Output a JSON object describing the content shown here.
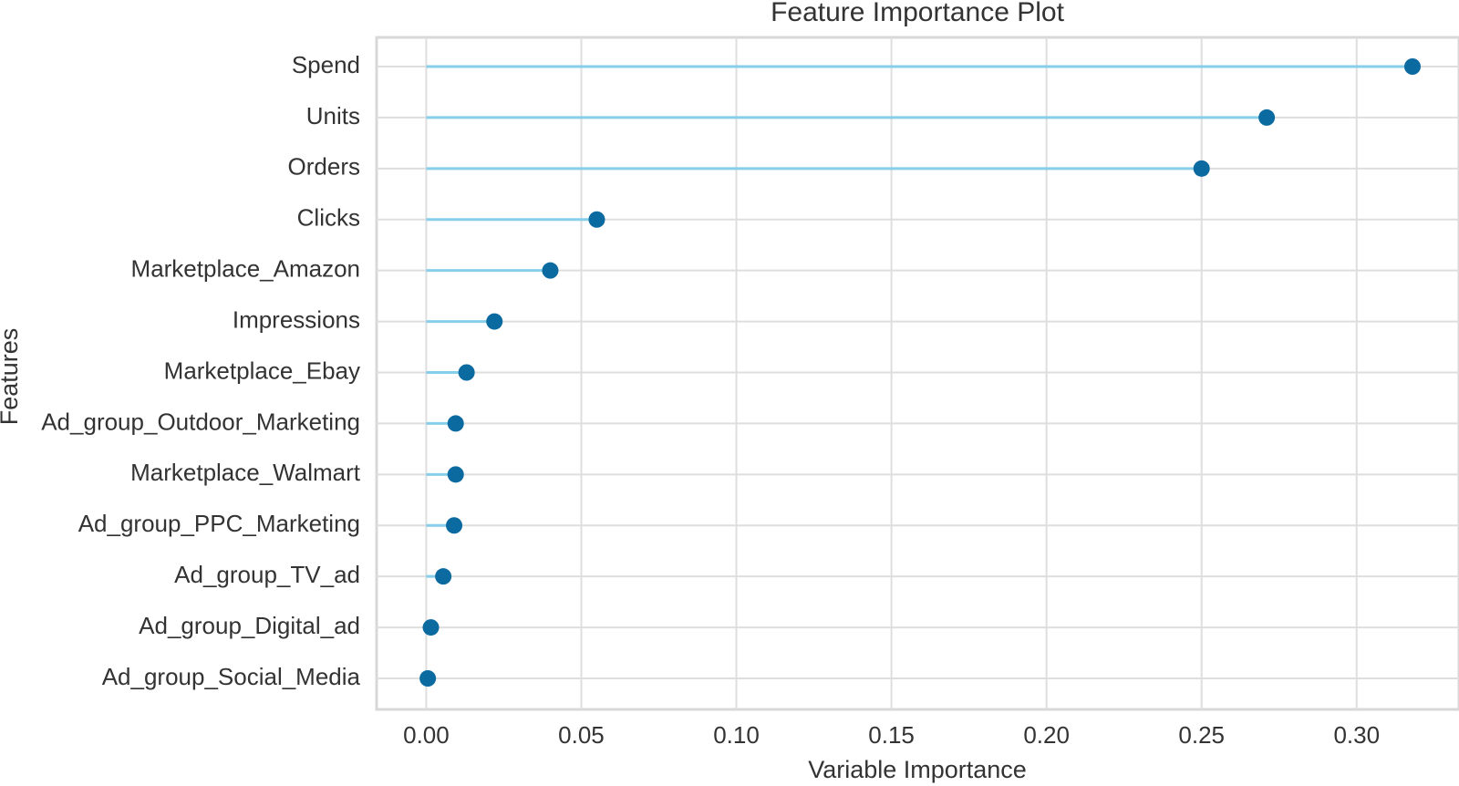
{
  "chart_data": {
    "type": "scatter",
    "title": "Feature Importance Plot",
    "xlabel": "Variable Importance",
    "ylabel": "Features",
    "categories": [
      "Spend",
      "Units",
      "Orders",
      "Clicks",
      "Marketplace_Amazon",
      "Impressions",
      "Marketplace_Ebay",
      "Ad_group_Outdoor_Marketing",
      "Marketplace_Walmart",
      "Ad_group_PPC_Marketing",
      "Ad_group_TV_ad",
      "Ad_group_Digital_ad",
      "Ad_group_Social_Media"
    ],
    "values": [
      0.318,
      0.271,
      0.25,
      0.055,
      0.04,
      0.022,
      0.013,
      0.0095,
      0.0095,
      0.009,
      0.0055,
      0.0015,
      0.0005
    ],
    "xlim": [
      -0.016,
      0.333
    ],
    "xticks": [
      0.0,
      0.05,
      0.1,
      0.15,
      0.2,
      0.25,
      0.3
    ],
    "x_tick_labels": [
      "0.00",
      "0.05",
      "0.10",
      "0.15",
      "0.20",
      "0.25",
      "0.30"
    ],
    "grid": true,
    "colors": {
      "stem": "#87ceeb",
      "point": "#0b6aa0",
      "grid": "#dedede",
      "frame": "#d8d8d8",
      "text": "#333333"
    }
  }
}
